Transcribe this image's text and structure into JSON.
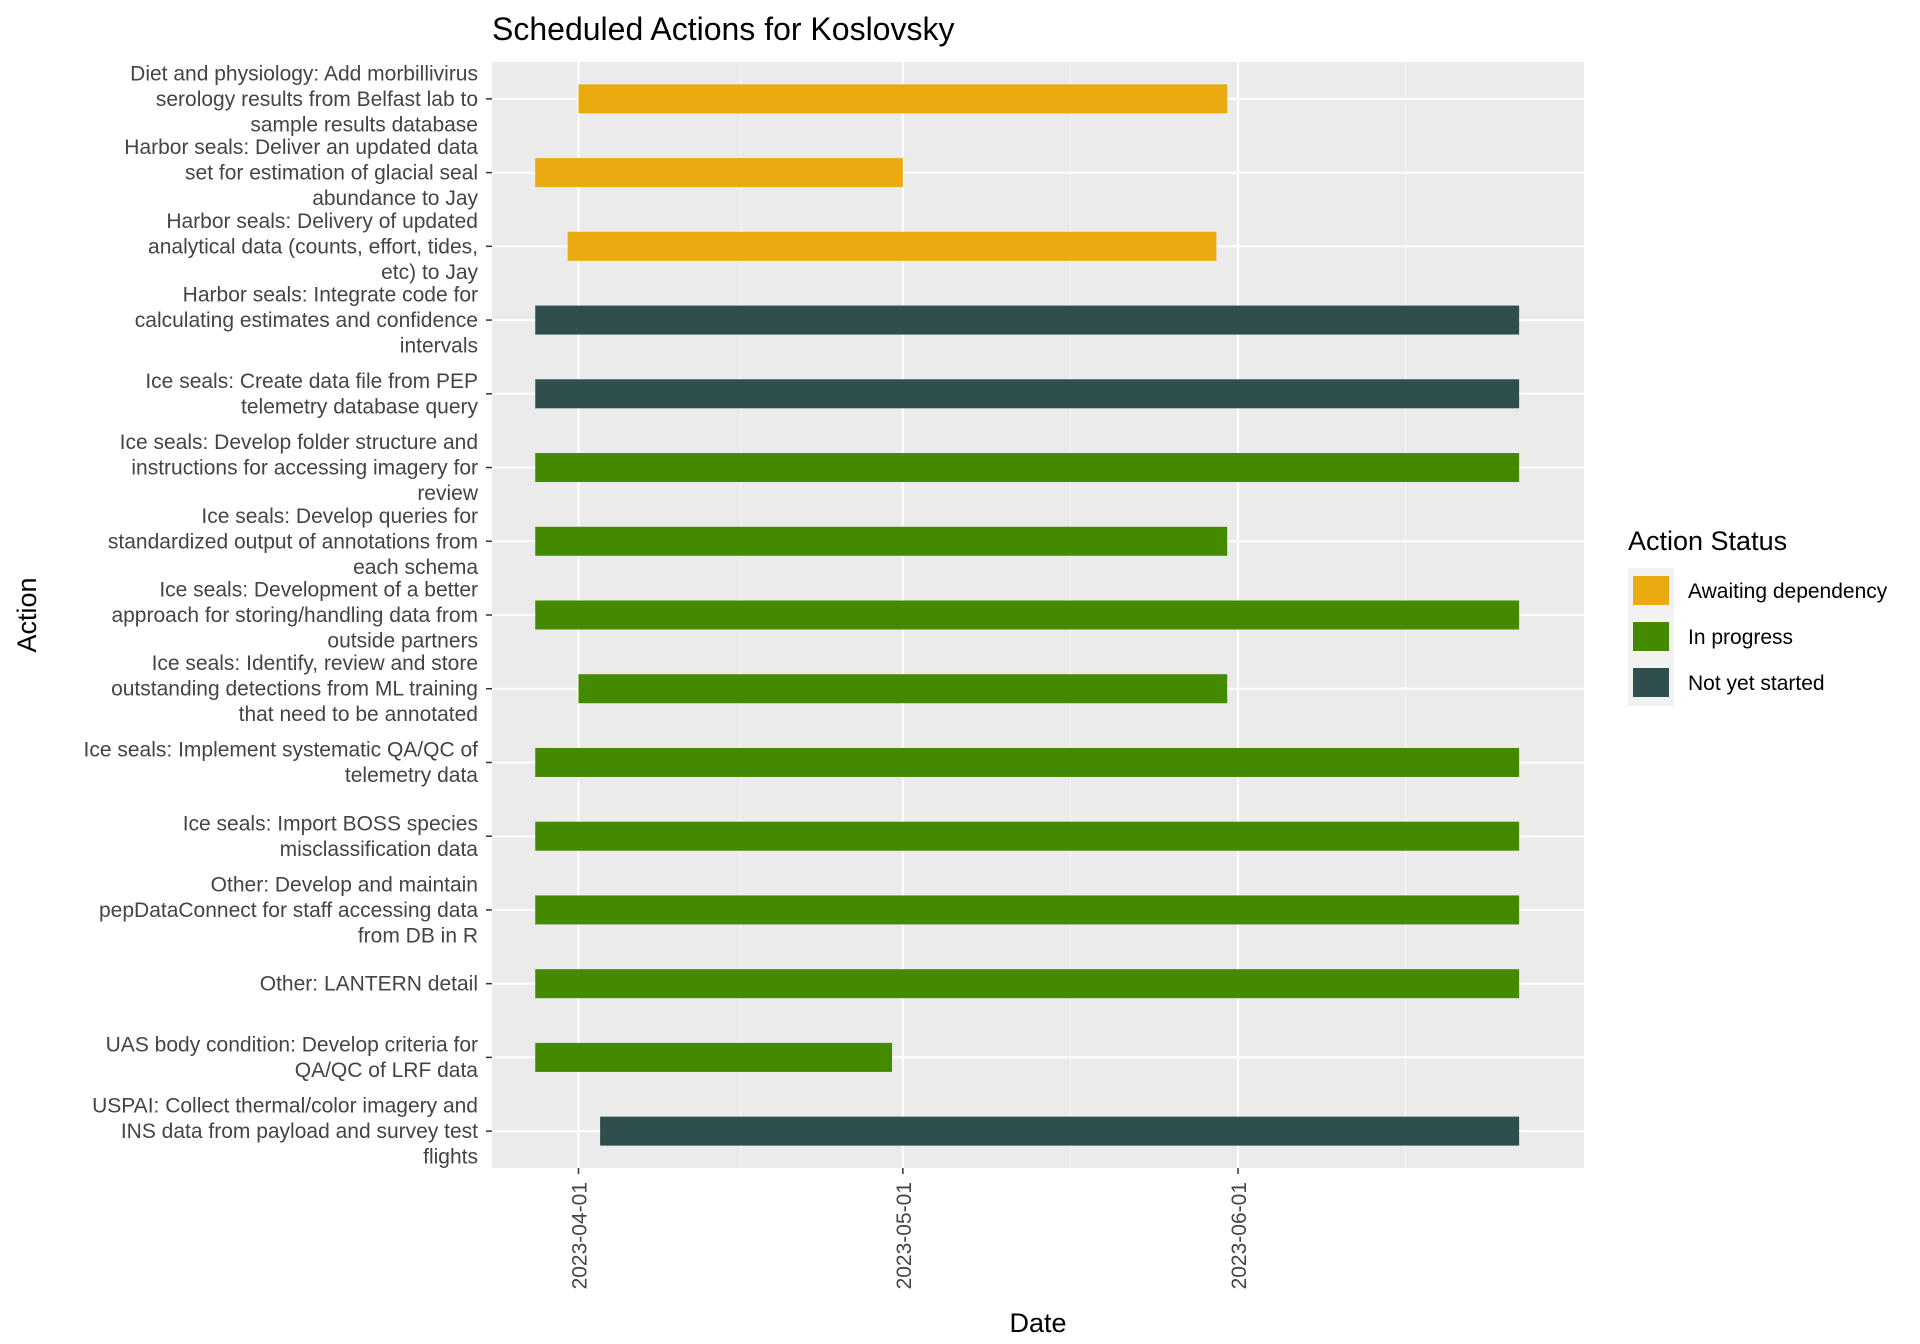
{
  "chart_data": {
    "type": "bar",
    "orientation": "horizontal",
    "title": "Scheduled Actions for Koslovsky",
    "xlabel": "Date",
    "ylabel": "Action",
    "x_axis_type": "date",
    "xlim": [
      "2023-03-24",
      "2023-07-03"
    ],
    "x_ticks": [
      "2023-04-01",
      "2023-05-01",
      "2023-06-01"
    ],
    "grid": true,
    "legend": {
      "title": "Action Status",
      "placement": "right",
      "entries": [
        {
          "label": "Awaiting dependency",
          "color": "#E9AB10"
        },
        {
          "label": "In progress",
          "color": "#448A00"
        },
        {
          "label": "Not yet started",
          "color": "#2F4F4F"
        }
      ]
    },
    "tasks": [
      {
        "label": [
          "Diet and physiology: Add morbillivirus",
          "serology results from Belfast lab to",
          "sample results database"
        ],
        "start": "2023-04-01",
        "end": "2023-05-31",
        "status": "Awaiting dependency"
      },
      {
        "label": [
          "Harbor seals: Deliver an updated data",
          "set for estimation of glacial seal",
          "abundance to Jay"
        ],
        "start": "2023-03-28",
        "end": "2023-05-01",
        "status": "Awaiting dependency"
      },
      {
        "label": [
          "Harbor seals: Delivery of updated",
          "analytical data (counts, effort, tides,",
          "etc) to Jay"
        ],
        "start": "2023-03-31",
        "end": "2023-05-30",
        "status": "Awaiting dependency"
      },
      {
        "label": [
          "Harbor seals: Integrate code for",
          "calculating estimates and confidence",
          "intervals"
        ],
        "start": "2023-03-28",
        "end": "2023-06-27",
        "status": "Not yet started"
      },
      {
        "label": [
          "Ice seals: Create data file from PEP",
          "telemetry database query"
        ],
        "start": "2023-03-28",
        "end": "2023-06-27",
        "status": "Not yet started"
      },
      {
        "label": [
          "Ice seals: Develop folder structure and",
          "instructions for accessing imagery for",
          "review"
        ],
        "start": "2023-03-28",
        "end": "2023-06-27",
        "status": "In progress"
      },
      {
        "label": [
          "Ice seals: Develop queries for",
          "standardized output of annotations from",
          "each schema"
        ],
        "start": "2023-03-28",
        "end": "2023-05-31",
        "status": "In progress"
      },
      {
        "label": [
          "Ice seals: Development of a better",
          "approach for storing/handling data from",
          "outside partners"
        ],
        "start": "2023-03-28",
        "end": "2023-06-27",
        "status": "In progress"
      },
      {
        "label": [
          "Ice seals: Identify, review and store",
          "outstanding detections from ML training",
          "that need to be annotated"
        ],
        "start": "2023-04-01",
        "end": "2023-05-31",
        "status": "In progress"
      },
      {
        "label": [
          "Ice seals: Implement systematic QA/QC of",
          "telemetry data"
        ],
        "start": "2023-03-28",
        "end": "2023-06-27",
        "status": "In progress"
      },
      {
        "label": [
          "Ice seals: Import BOSS species",
          "misclassification data"
        ],
        "start": "2023-03-28",
        "end": "2023-06-27",
        "status": "In progress"
      },
      {
        "label": [
          "Other: Develop and maintain",
          "pepDataConnect for staff accessing data",
          "from DB in R"
        ],
        "start": "2023-03-28",
        "end": "2023-06-27",
        "status": "In progress"
      },
      {
        "label": [
          "Other: LANTERN detail"
        ],
        "start": "2023-03-28",
        "end": "2023-06-27",
        "status": "In progress"
      },
      {
        "label": [
          "UAS body condition: Develop criteria for",
          "QA/QC of LRF data"
        ],
        "start": "2023-03-28",
        "end": "2023-04-30",
        "status": "In progress"
      },
      {
        "label": [
          "USPAI: Collect thermal/color imagery and",
          "INS data from payload and survey test",
          "flights"
        ],
        "start": "2023-04-03",
        "end": "2023-06-27",
        "status": "Not yet started"
      }
    ]
  }
}
